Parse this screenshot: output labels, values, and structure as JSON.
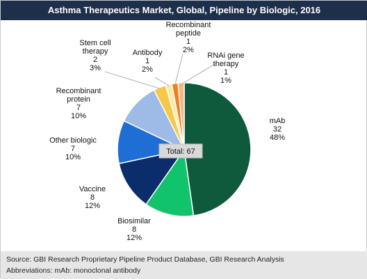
{
  "chart_data": {
    "type": "pie",
    "title": "Asthma Therapeutics Market, Global, Pipeline by Biologic, 2016",
    "center_label": "Total: 67",
    "total": 67,
    "slices": [
      {
        "name": "mAb",
        "value": 32,
        "percent": "48%",
        "color": "#0f5a3c"
      },
      {
        "name": "Biosimilar",
        "value": 8,
        "percent": "12%",
        "color": "#11c46c"
      },
      {
        "name": "Vaccine",
        "value": 8,
        "percent": "12%",
        "color": "#0c2d6b"
      },
      {
        "name": "Other biologic",
        "value": 7,
        "percent": "10%",
        "color": "#1f6ed4"
      },
      {
        "name": "Recombinant protein",
        "value": 7,
        "percent": "10%",
        "color": "#9dbbe6"
      },
      {
        "name": "Stem cell therapy",
        "value": 2,
        "percent": "3%",
        "color": "#f6c84a"
      },
      {
        "name": "Antibody",
        "value": 1,
        "percent": "2%",
        "color": "#fbe9a6"
      },
      {
        "name": "Recombinant peptide",
        "value": 1,
        "percent": "2%",
        "color": "#f07f1d"
      },
      {
        "name": "RNAi gene therapy",
        "value": 1,
        "percent": "1%",
        "color": "#f6b487"
      }
    ]
  },
  "footer": {
    "source": "Source: GBI Research Proprietary Pipeline Product Database, GBI Research Analysis",
    "abbreviations": "Abbreviations: mAb: monoclonal antibody"
  }
}
